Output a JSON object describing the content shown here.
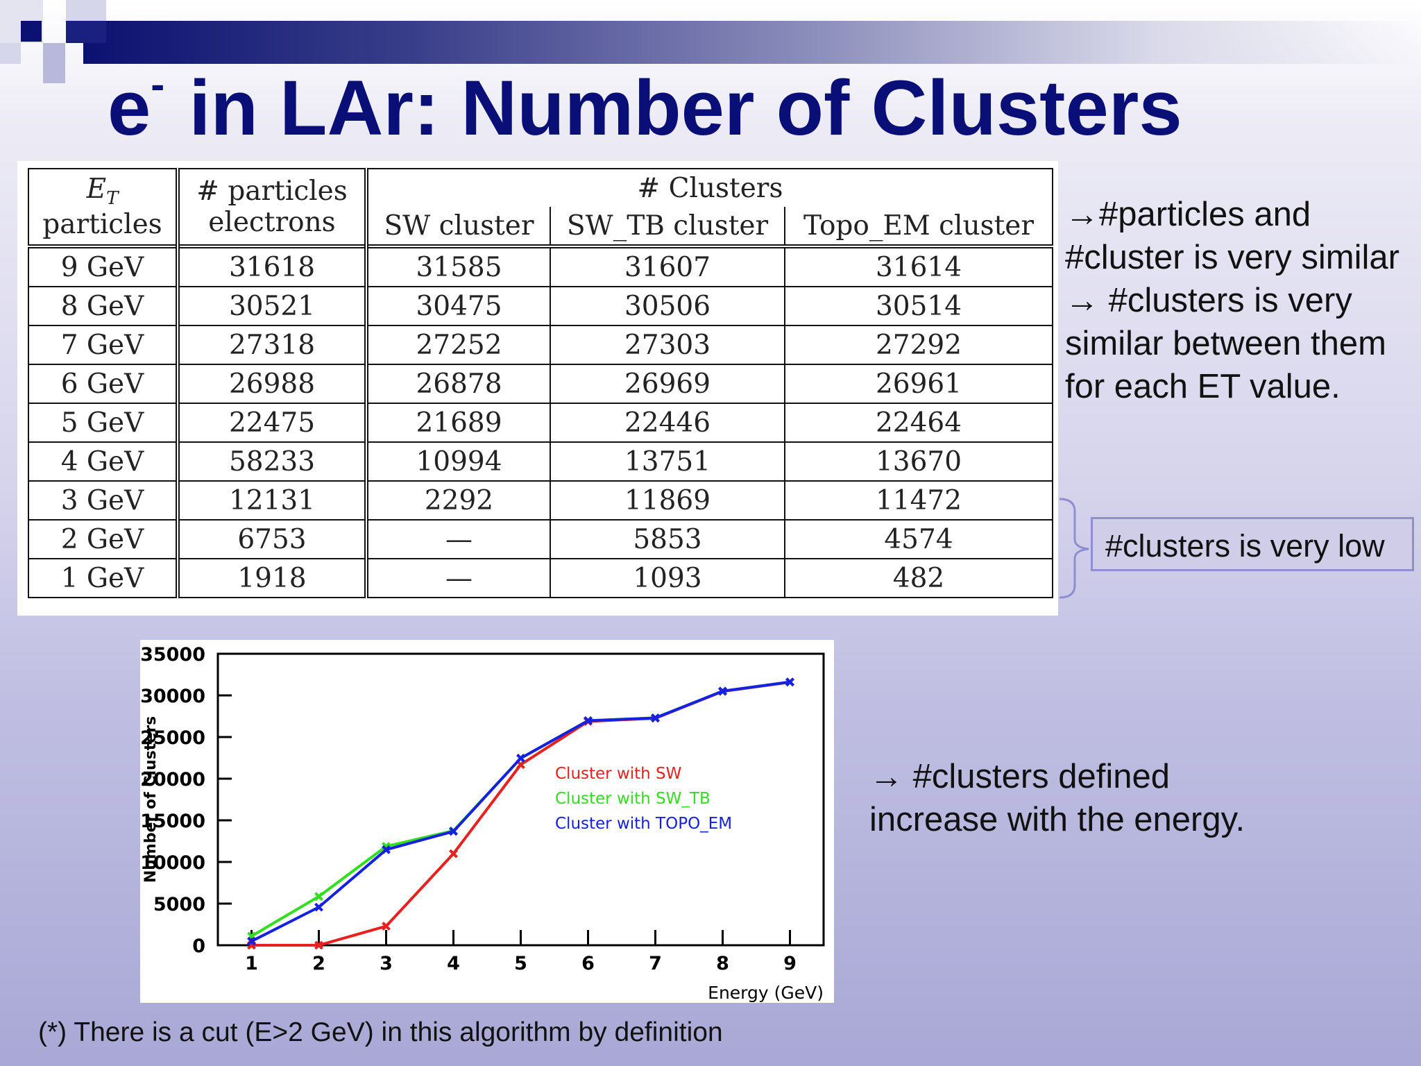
{
  "slide": {
    "title_main": "e",
    "title_sup": "-",
    "title_rest": " in LAr: Number of Clusters"
  },
  "table": {
    "header": {
      "et_main": "E",
      "et_sub": "T",
      "et_label2": "particles",
      "particles_label1": "# particles",
      "particles_label2": "electrons",
      "clusters_group": "# Clusters",
      "sw": "SW cluster",
      "sw_tb": "SW_TB cluster",
      "topo_em": "Topo_EM cluster"
    },
    "rows": [
      {
        "et": "9 GeV",
        "electrons": "31618",
        "sw": "31585",
        "sw_tb": "31607",
        "topo_em": "31614"
      },
      {
        "et": "8 GeV",
        "electrons": "30521",
        "sw": "30475",
        "sw_tb": "30506",
        "topo_em": "30514"
      },
      {
        "et": "7 GeV",
        "electrons": "27318",
        "sw": "27252",
        "sw_tb": "27303",
        "topo_em": "27292"
      },
      {
        "et": "6 GeV",
        "electrons": "26988",
        "sw": "26878",
        "sw_tb": "26969",
        "topo_em": "26961"
      },
      {
        "et": "5 GeV",
        "electrons": "22475",
        "sw": "21689",
        "sw_tb": "22446",
        "topo_em": "22464"
      },
      {
        "et": "4 GeV",
        "electrons": "58233",
        "sw": "10994",
        "sw_tb": "13751",
        "topo_em": "13670"
      },
      {
        "et": "3 GeV",
        "electrons": "12131",
        "sw": "2292",
        "sw_tb": "11869",
        "topo_em": "11472"
      },
      {
        "et": "2 GeV",
        "electrons": "6753",
        "sw": "—",
        "sw_tb": "5853",
        "topo_em": "4574"
      },
      {
        "et": "1 GeV",
        "electrons": "1918",
        "sw": "—",
        "sw_tb": "1093",
        "topo_em": "482"
      }
    ]
  },
  "notes": {
    "similar_line1": "→#particles and",
    "similar_line2": "#cluster is very similar",
    "similar_line3": "→ #clusters is very",
    "similar_line4": "similar between them",
    "similar_line5": "for each ET value.",
    "low": "#clusters is very low",
    "increase_line1": "→ #clusters defined",
    "increase_line2": "increase with the energy.",
    "footnote": "(*) There is a cut (E>2 GeV) in this algorithm by definition"
  },
  "chart_data": {
    "type": "line",
    "title": "",
    "xlabel": "Energy (GeV)",
    "ylabel": "Number of Clusters",
    "xlim": [
      0.5,
      9.5
    ],
    "ylim": [
      0,
      35000
    ],
    "x_ticks": [
      1,
      2,
      3,
      4,
      5,
      6,
      7,
      8,
      9
    ],
    "y_ticks": [
      0,
      5000,
      10000,
      15000,
      20000,
      25000,
      30000,
      35000
    ],
    "legend_placement": "inside-center",
    "series": [
      {
        "name": "Cluster with SW",
        "color": "#e8201e",
        "x": [
          1,
          2,
          3,
          4,
          5,
          6,
          7,
          8,
          9
        ],
        "values": [
          0,
          0,
          2292,
          10994,
          21689,
          26878,
          27252,
          30475,
          31585
        ]
      },
      {
        "name": "Cluster with SW_TB",
        "color": "#33dd22",
        "x": [
          1,
          2,
          3,
          4,
          5,
          6,
          7,
          8,
          9
        ],
        "values": [
          1093,
          5853,
          11869,
          13751,
          22446,
          26969,
          27303,
          30506,
          31607
        ]
      },
      {
        "name": "Cluster with TOPO_EM",
        "color": "#1520e0",
        "x": [
          1,
          2,
          3,
          4,
          5,
          6,
          7,
          8,
          9
        ],
        "values": [
          482,
          4574,
          11472,
          13670,
          22464,
          26961,
          27292,
          30514,
          31614
        ]
      }
    ]
  }
}
